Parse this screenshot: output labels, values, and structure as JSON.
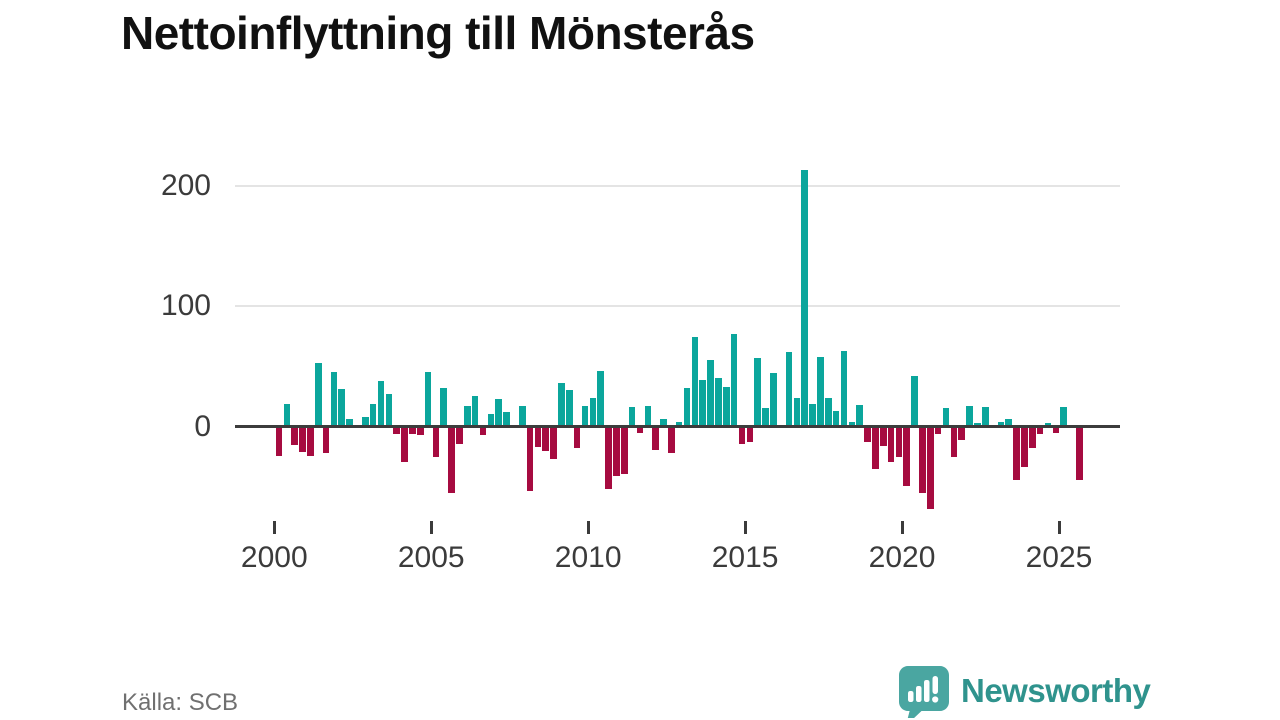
{
  "title": "Nettoinflyttning till Mönsterås",
  "source": "Källa: SCB",
  "branding": {
    "name": "Newsworthy"
  },
  "colors": {
    "positive_bar": "#0ba69c",
    "negative_bar": "#a60b40",
    "gridline": "#e4e4e4",
    "axis": "#3c3c3c",
    "tick_text": "#3b3b3b",
    "title_text": "#111111",
    "source_text": "#707070",
    "logo_fill": "#4aa6a1",
    "logo_text": "#2f938d"
  },
  "chart_data": {
    "type": "bar",
    "title": "Nettoinflyttning till Mönsterås",
    "xlabel": "",
    "ylabel": "",
    "frequency": "quarterly",
    "start_period": "2000-Q1",
    "end_period": "2025-Q3",
    "x_tick_labels": [
      "2000",
      "2005",
      "2010",
      "2015",
      "2020",
      "2025"
    ],
    "y_tick_labels": [
      "0",
      "100",
      "200"
    ],
    "y_tick_values": [
      0,
      100,
      200
    ],
    "ylim": [
      -80,
      230
    ],
    "grid": "horizontal-only",
    "legend": "none",
    "values": [
      -23,
      19,
      -14,
      -20,
      -23,
      53,
      -21,
      45,
      31,
      6,
      0,
      8,
      19,
      38,
      27,
      -5,
      -28,
      -5,
      -6,
      45,
      -24,
      32,
      -54,
      -13,
      17,
      25,
      -6,
      10,
      23,
      12,
      0,
      17,
      -52,
      -16,
      -19,
      -26,
      36,
      30,
      -17,
      17,
      24,
      46,
      -51,
      -40,
      -38,
      16,
      -4,
      17,
      -18,
      6,
      -21,
      4,
      32,
      74,
      39,
      55,
      40,
      33,
      77,
      -13,
      -12,
      57,
      15,
      44,
      0,
      62,
      24,
      213,
      19,
      58,
      24,
      13,
      63,
      4,
      18,
      -12,
      -34,
      -15,
      -28,
      -24,
      -48,
      42,
      -54,
      -67,
      -5,
      15,
      -24,
      -10,
      17,
      3,
      16,
      0,
      4,
      6,
      -43,
      -32,
      -17,
      -5,
      3,
      -4,
      16,
      0,
      -43
    ]
  }
}
